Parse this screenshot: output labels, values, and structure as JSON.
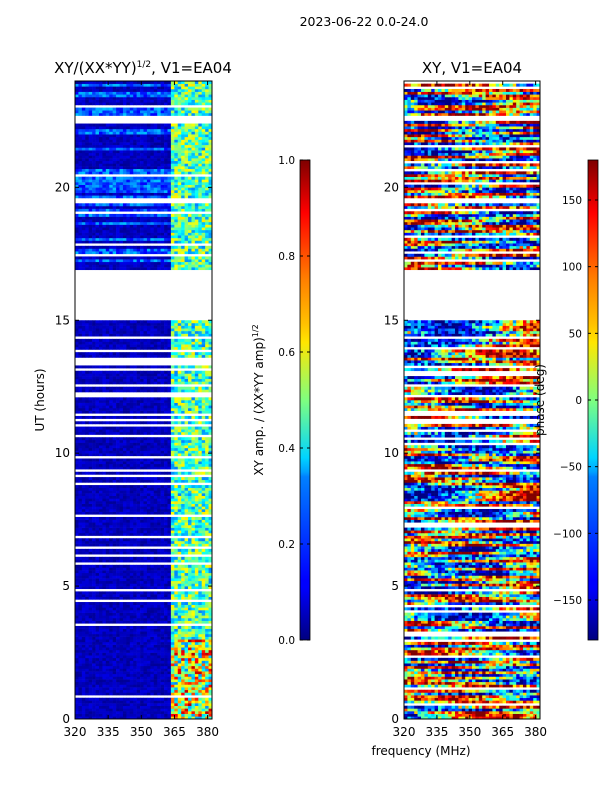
{
  "header": {
    "suptitle": "2023-06-22 0.0-24.0"
  },
  "chart_data": [
    {
      "type": "heatmap",
      "title": "XY/(XX*YY)",
      "title_sup": "1/2",
      "title_suffix": ", V1=EA04",
      "xlabel": "frequency (MHz)",
      "ylabel": "UT (hours)",
      "xlim": [
        320,
        382
      ],
      "ylim": [
        0,
        24
      ],
      "xticks": [
        320,
        335,
        350,
        365,
        380
      ],
      "yticks": [
        0,
        5,
        10,
        15,
        20
      ],
      "colorbar": {
        "label": "XY amp. / (XX*YY amp)",
        "label_sup": "1/2",
        "range": [
          0.0,
          1.0
        ],
        "ticks": [
          "0.0",
          "0.2",
          "0.4",
          "0.6",
          "0.8",
          "1.0"
        ]
      },
      "data_gap_hours": [
        15.0,
        16.9
      ]
    },
    {
      "type": "heatmap",
      "title": "XY, V1=EA04",
      "xlabel": "frequency (MHz)",
      "ylabel": "",
      "xlim": [
        320,
        382
      ],
      "ylim": [
        0,
        24
      ],
      "xticks": [
        320,
        335,
        350,
        365,
        380
      ],
      "yticks": [
        0,
        5,
        10,
        15,
        20
      ],
      "colorbar": {
        "label": "phase (deg)",
        "range": [
          -180,
          180
        ],
        "ticks": [
          "−150",
          "−100",
          "−50",
          "0",
          "50",
          "100",
          "150"
        ]
      },
      "data_gap_hours": [
        15.0,
        16.9
      ]
    }
  ],
  "colors": {
    "jet_low": "#00007f",
    "jet_mid": "#7fff7f",
    "jet_high": "#7f0000",
    "gap": "#ffffff"
  }
}
